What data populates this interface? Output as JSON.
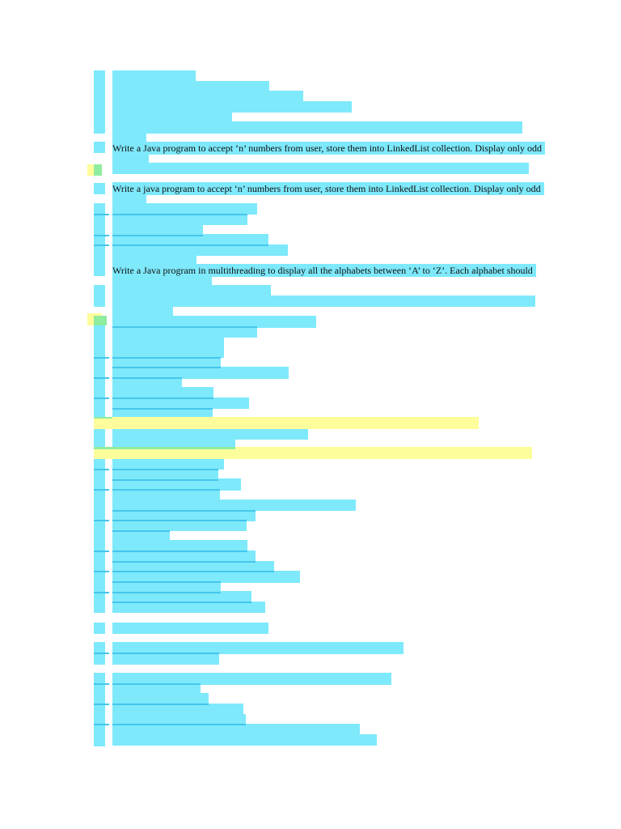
{
  "document": {
    "visible_lines": [
      "Write a Java program to accept ‘n’ numbers from user, store them into LinkedList collection. Display only odd",
      "Write a java program to accept ‘n’ numbers from user, store them into LinkedList collection. Display only odd",
      "Write a Java program in multithreading to display all the alphabets between ‘A’ to ‘Z’. Each alphabet should"
    ]
  },
  "highlight_colors": {
    "redaction": "#7ee9fb",
    "redaction_edge": "#45c6ec",
    "marker": "#fefd9b",
    "overlap": "#90ec9e"
  }
}
